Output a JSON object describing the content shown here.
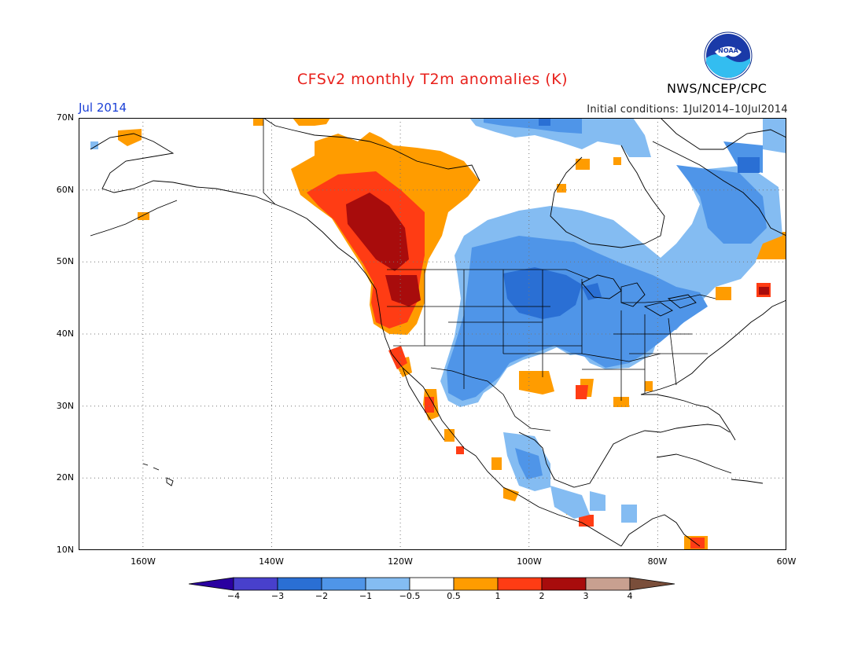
{
  "map": {
    "title": "CFSv2 monthly T2m anomalies (K)",
    "month": "Jul 2014",
    "initial_conditions": "Initial conditions: 1Jul2014–10Jul2014",
    "agency": "NWS/NCEP/CPC",
    "logo_text": "NOAA",
    "lat_labels": [
      "70N",
      "60N",
      "50N",
      "40N",
      "30N",
      "20N",
      "10N"
    ],
    "lon_labels": [
      "160W",
      "140W",
      "120W",
      "100W",
      "80W",
      "60W"
    ],
    "colorbar": {
      "labels": [
        "−4",
        "−3",
        "−2",
        "−1",
        "−0.5",
        "0.5",
        "1",
        "2",
        "3",
        "4"
      ],
      "colors": [
        "#2a00a0",
        "#4840cc",
        "#2a6fd4",
        "#4f95e8",
        "#84bcf2",
        "#ffffff",
        "#ff9c00",
        "#ff3c14",
        "#a80c0c",
        "#c8a090",
        "#7a4e3a"
      ]
    },
    "extent": {
      "lon": [
        -170,
        -60
      ],
      "lat": [
        10,
        70
      ]
    }
  }
}
